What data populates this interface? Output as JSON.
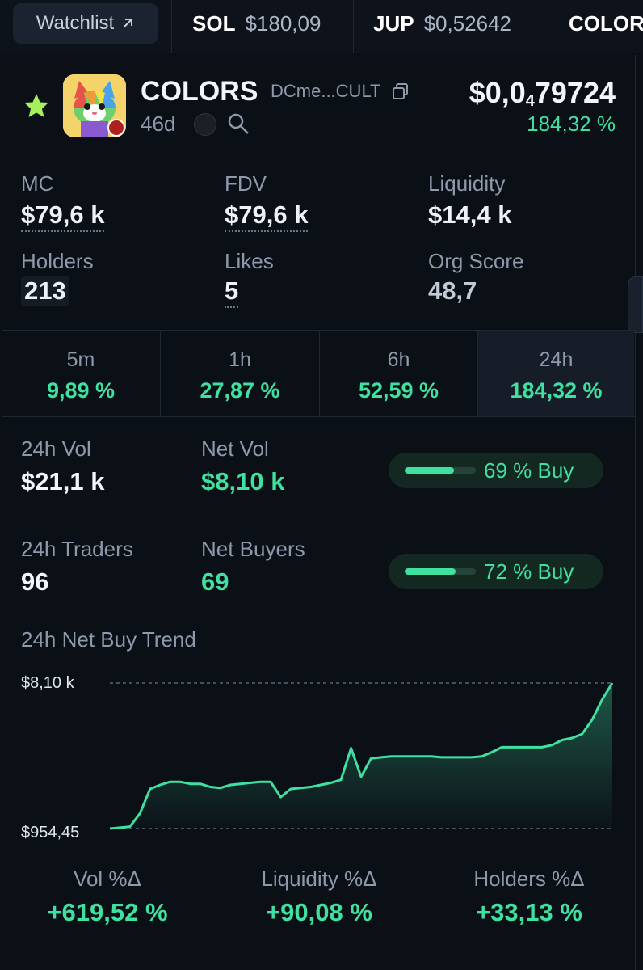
{
  "topbar": {
    "watchlist_label": "Watchlist",
    "tickers": [
      {
        "symbol": "SOL",
        "price": "$180,09"
      },
      {
        "symbol": "JUP",
        "price": "$0,52642"
      },
      {
        "symbol": "COLOR",
        "price": ""
      }
    ]
  },
  "token": {
    "name": "COLORS",
    "address": "DCme...CULT",
    "age": "46d",
    "price_prefix": "$0,0",
    "price_zeros": "4",
    "price_digits": "79724",
    "change_24h": "184,32 %"
  },
  "stats": {
    "mc_label": "MC",
    "mc_value": "$79,6 k",
    "fdv_label": "FDV",
    "fdv_value": "$79,6 k",
    "liq_label": "Liquidity",
    "liq_value": "$14,4 k",
    "holders_label": "Holders",
    "holders_value": "213",
    "likes_label": "Likes",
    "likes_value": "5",
    "org_label": "Org Score",
    "org_value": "48,7"
  },
  "timeframes": [
    {
      "label": "5m",
      "pct": "9,89 %"
    },
    {
      "label": "1h",
      "pct": "27,87 %"
    },
    {
      "label": "6h",
      "pct": "52,59 %"
    },
    {
      "label": "24h",
      "pct": "184,32 %"
    }
  ],
  "volume": {
    "vol_label": "24h Vol",
    "vol_value": "$21,1 k",
    "netvol_label": "Net Vol",
    "netvol_value": "$8,10 k",
    "buy_pct_text": "69 % Buy",
    "buy_fraction": 0.69
  },
  "traders": {
    "traders_label": "24h Traders",
    "traders_value": "96",
    "netbuyers_label": "Net Buyers",
    "netbuyers_value": "69",
    "buy_pct_text": "72 % Buy",
    "buy_fraction": 0.72
  },
  "chart_data": {
    "type": "area",
    "title": "24h Net Buy Trend",
    "ylim": [
      954.45,
      8100
    ],
    "ytick_labels": [
      "$8,10 k",
      "$954,45"
    ],
    "values": [
      954,
      1000,
      1050,
      1700,
      2900,
      3100,
      3250,
      3250,
      3150,
      3150,
      3000,
      2950,
      3100,
      3150,
      3200,
      3250,
      3250,
      2500,
      2900,
      2950,
      3000,
      3100,
      3200,
      3350,
      4900,
      3500,
      4400,
      4450,
      4500,
      4500,
      4500,
      4500,
      4500,
      4450,
      4450,
      4450,
      4450,
      4500,
      4700,
      4950,
      4950,
      4950,
      4950,
      4950,
      5050,
      5300,
      5400,
      5600,
      6300,
      7300,
      8100
    ]
  },
  "deltas": [
    {
      "label": "Vol %Δ",
      "value": "+619,52 %"
    },
    {
      "label": "Liquidity %Δ",
      "value": "+90,08 %"
    },
    {
      "label": "Holders %Δ",
      "value": "+33,13 %"
    }
  ],
  "colors": {
    "accent_green": "#3fe0a0",
    "background": "#0b0f16"
  }
}
